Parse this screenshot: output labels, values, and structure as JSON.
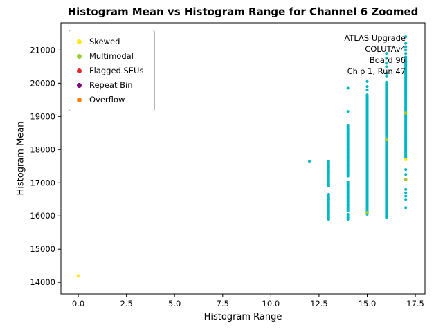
{
  "chart_data": {
    "type": "scatter",
    "title": "Histogram Mean vs Histogram Range for Channel 6 Zoomed",
    "xlabel": "Histogram Range",
    "ylabel": "Histogram Mean",
    "xlim": [
      -0.9,
      18.0
    ],
    "ylim": [
      13650,
      21820
    ],
    "xticks": [
      0.0,
      2.5,
      5.0,
      7.5,
      10.0,
      12.5,
      15.0,
      17.5
    ],
    "yticks": [
      14000,
      15000,
      16000,
      17000,
      18000,
      19000,
      20000,
      21000
    ],
    "grid": false,
    "legend_position": "upper left",
    "marker_color_main": "#00b7c4",
    "base_series": {
      "color": "#00b7c4",
      "columns": [
        {
          "x": 12,
          "ys": [
            17650
          ]
        },
        {
          "x": 13,
          "segments": [
            [
              15900,
              16650,
              50
            ],
            [
              16900,
              17650,
              50
            ]
          ]
        },
        {
          "x": 14,
          "segments": [
            [
              15900,
              16050,
              50
            ],
            [
              16150,
              17050,
              40
            ],
            [
              17200,
              18750,
              40
            ]
          ],
          "ys": [
            19150,
            19850
          ]
        },
        {
          "x": 15,
          "segments": [
            [
              16050,
              19650,
              30
            ]
          ],
          "ys": [
            19800,
            19900,
            20050
          ]
        },
        {
          "x": 16,
          "segments": [
            [
              15950,
              20050,
              30
            ]
          ],
          "ys": [
            20200,
            20300,
            20500,
            20600,
            20750,
            20900
          ]
        },
        {
          "x": 17,
          "segments": [
            [
              17700,
              20800,
              30
            ]
          ],
          "ys": [
            16250,
            16500,
            16600,
            16700,
            16800,
            17250,
            17400,
            20900,
            21000,
            21100,
            21200,
            21400
          ]
        }
      ]
    },
    "legend": [
      {
        "label": "Skewed",
        "color": "#ffe81a",
        "points": [
          [
            0,
            14200
          ],
          [
            17,
            17700
          ]
        ]
      },
      {
        "label": "Multimodal",
        "color": "#9acd32",
        "points": [
          [
            15,
            16100
          ],
          [
            16,
            18300
          ],
          [
            17,
            17100
          ],
          [
            17,
            19100
          ]
        ]
      },
      {
        "label": "Flagged SEUs",
        "color": "#e02b2b",
        "points": []
      },
      {
        "label": "Repeat Bin",
        "color": "#800080",
        "points": []
      },
      {
        "label": "Overflow",
        "color": "#ff7f0e",
        "points": []
      }
    ],
    "annotation": {
      "lines": [
        "ATLAS Upgrade",
        "COLUTAv4",
        "Board 96",
        "Chip 1, Run 47"
      ]
    }
  }
}
